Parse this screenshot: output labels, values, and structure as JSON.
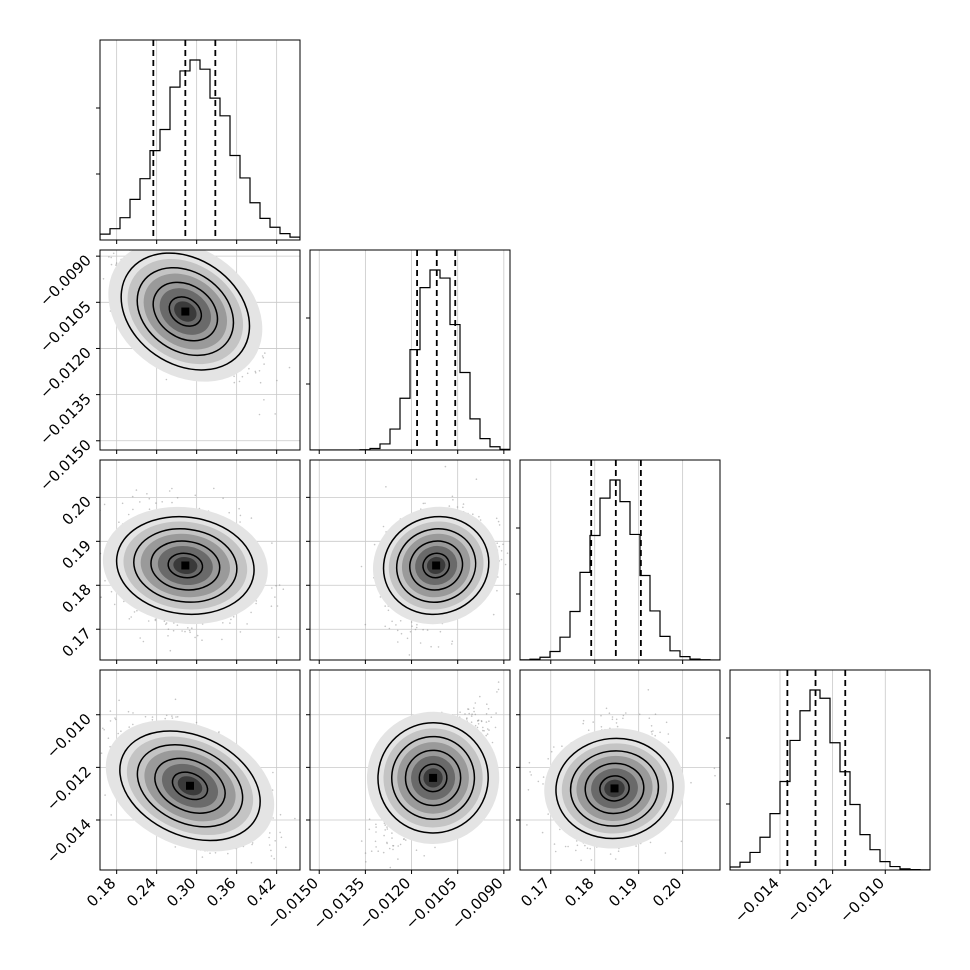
{
  "chart_data": {
    "type": "corner",
    "parameters": [
      {
        "ticks": [
          0.18,
          0.24,
          0.3,
          0.36,
          0.42
        ],
        "tick_labels": [
          "0.18",
          "0.24",
          "0.30",
          "0.36",
          "0.42"
        ],
        "range": [
          0.155,
          0.455
        ],
        "quantiles": [
          0.235,
          0.283,
          0.328
        ],
        "hist_peak": 0.298,
        "hist_sd": 0.052
      },
      {
        "ticks": [
          -0.015,
          -0.0135,
          -0.012,
          -0.0105,
          -0.009
        ],
        "tick_labels": [
          "−0.0150",
          "−0.0135",
          "−0.0120",
          "−0.0105",
          "−0.0090"
        ],
        "range": [
          -0.0153,
          -0.0088
        ],
        "quantiles": [
          -0.01182,
          -0.01118,
          -0.01058
        ],
        "hist_peak": -0.01115,
        "hist_sd": 0.00065
      },
      {
        "ticks": [
          0.17,
          0.18,
          0.19,
          0.2
        ],
        "tick_labels": [
          "0.17",
          "0.18",
          "0.19",
          "0.20"
        ],
        "range": [
          0.163,
          0.2085
        ],
        "quantiles": [
          0.1792,
          0.1848,
          0.1905
        ],
        "hist_peak": 0.1848,
        "hist_sd": 0.0056
      },
      {
        "ticks": [
          -0.014,
          -0.012,
          -0.01
        ],
        "tick_labels": [
          "−0.014",
          "−0.012",
          "−0.010"
        ],
        "range": [
          -0.0159,
          -0.0083
        ],
        "quantiles": [
          -0.01372,
          -0.01265,
          -0.01152
        ],
        "hist_peak": -0.01265,
        "hist_sd": 0.00108
      }
    ],
    "histogram_bins": 20,
    "density_peaks": {
      "1-0": [
        0.283,
        -0.0108
      ],
      "2-0": [
        0.283,
        0.1845
      ],
      "2-1": [
        -0.0112,
        0.1845
      ],
      "3-0": [
        0.29,
        -0.0127
      ],
      "3-1": [
        -0.0113,
        -0.0124
      ],
      "3-2": [
        0.1845,
        -0.0128
      ]
    },
    "density_spread": {
      "1-0": [
        0.045,
        0.0009,
        -0.75
      ],
      "2-0": [
        0.045,
        0.0058,
        -0.15
      ],
      "2-1": [
        0.00075,
        0.0058,
        0.3
      ],
      "3-0": [
        0.048,
        0.001,
        -0.55
      ],
      "3-1": [
        0.00078,
        0.0011,
        0.75
      ],
      "3-2": [
        0.0058,
        0.001,
        0.1
      ]
    },
    "contour_levels": [
      0.5,
      1.0,
      1.5,
      2.0
    ],
    "grid": true,
    "line_style": "black, dashed quantile lines"
  }
}
